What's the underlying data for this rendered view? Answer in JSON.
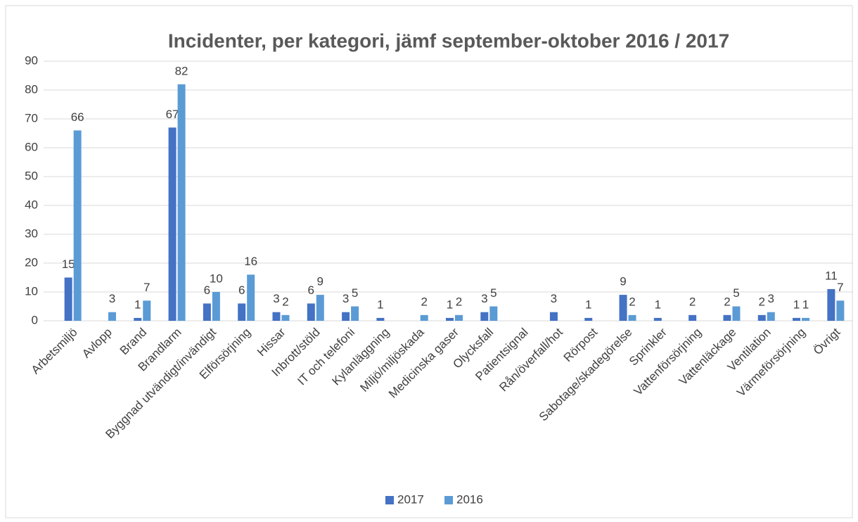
{
  "chart_data": {
    "type": "bar",
    "title": "Incidenter, per kategori, jämf september-oktober 2016 / 2017",
    "categories": [
      "Arbetsmiljö",
      "Avlopp",
      "Brand",
      "Brandlarm",
      "Byggnad utvändigt/invändigt",
      "Elförsörjning",
      "Hissar",
      "Inbrott/stöld",
      "IT och telefoni",
      "Kylanläggning",
      "Miljö/miljöskada",
      "Medicinska gaser",
      "Olycksfall",
      "Patientsignal",
      "Rån/överfall/hot",
      "Rörpost",
      "Sabotage/skadegörelse",
      "Sprinkler",
      "Vattenförsörjning",
      "Vattenläckage",
      "Ventilation",
      "Värmeförsörjning",
      "Övrigt"
    ],
    "series": [
      {
        "name": "2017",
        "color": "#4472c4",
        "values": [
          15,
          null,
          1,
          67,
          6,
          6,
          3,
          6,
          3,
          1,
          null,
          1,
          3,
          null,
          3,
          1,
          9,
          1,
          2,
          2,
          2,
          1,
          11
        ]
      },
      {
        "name": "2016",
        "color": "#5b9bd5",
        "values": [
          66,
          3,
          7,
          82,
          10,
          16,
          2,
          9,
          5,
          null,
          2,
          2,
          5,
          null,
          null,
          null,
          2,
          null,
          null,
          5,
          3,
          1,
          7
        ]
      }
    ],
    "ylim": [
      0,
      90
    ],
    "yticks": [
      0,
      10,
      20,
      30,
      40,
      50,
      60,
      70,
      80,
      90
    ],
    "grid": true,
    "legend": "bottom"
  }
}
